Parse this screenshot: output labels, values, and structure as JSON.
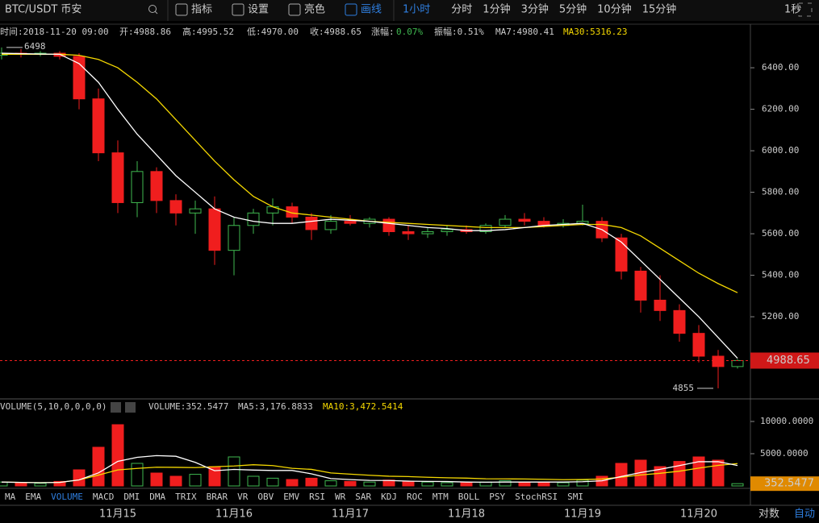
{
  "toolbar": {
    "pair": "BTC/USDT 币安",
    "items": [
      {
        "label": "指标"
      },
      {
        "label": "设置"
      },
      {
        "label": "亮色"
      },
      {
        "label": "画线",
        "active": true
      }
    ],
    "intervals": [
      {
        "label": "1小时",
        "active": true
      },
      {
        "label": "分时"
      },
      {
        "label": "1分钟"
      },
      {
        "label": "3分钟"
      },
      {
        "label": "5分钟"
      },
      {
        "label": "10分钟"
      },
      {
        "label": "15分钟"
      }
    ],
    "right": "1秒"
  },
  "info": {
    "time": "时间:2018-11-20 09:00",
    "open": "开:4988.86",
    "high": "高:4995.52",
    "low": "低:4970.00",
    "close": "收:4988.65",
    "change_label": "涨幅:",
    "change": "0.07%",
    "amplitude": "振幅:0.51%",
    "ma7": "MA7:4980.41",
    "ma30": "MA30:5316.23"
  },
  "volume_info": {
    "params": "VOLUME(5,10,0,0,0,0)",
    "volume": "VOLUME:352.5477",
    "ma5": "MA5:3,176.8833",
    "ma10": "MA10:3,472.5414"
  },
  "tabs": [
    {
      "label": "MA"
    },
    {
      "label": "EMA"
    },
    {
      "label": "VOLUME",
      "active": true
    },
    {
      "label": "MACD"
    },
    {
      "label": "DMI"
    },
    {
      "label": "DMA"
    },
    {
      "label": "TRIX"
    },
    {
      "label": "BRAR"
    },
    {
      "label": "VR"
    },
    {
      "label": "OBV"
    },
    {
      "label": "EMV"
    },
    {
      "label": "RSI"
    },
    {
      "label": "WR"
    },
    {
      "label": "SAR"
    },
    {
      "label": "KDJ"
    },
    {
      "label": "ROC"
    },
    {
      "label": "MTM"
    },
    {
      "label": "BOLL"
    },
    {
      "label": "PSY"
    },
    {
      "label": "StochRSI"
    },
    {
      "label": "SMI"
    }
  ],
  "footer": {
    "log": "对数",
    "auto": "自动"
  },
  "chart_data": [
    {
      "type": "candlestick",
      "up_color": "#3fb950",
      "down_color": "#f01e1e",
      "open": [
        6460,
        6470,
        6465,
        6470,
        6455,
        6250,
        5990,
        5750,
        5900,
        5760,
        5700,
        5720,
        5520,
        5640,
        5700,
        5730,
        5680,
        5620,
        5660,
        5650,
        5670,
        5610,
        5600,
        5610,
        5620,
        5610,
        5640,
        5670,
        5660,
        5640,
        5650,
        5660,
        5580,
        5420,
        5280,
        5230,
        5120,
        5010,
        4960
      ],
      "high": [
        6498,
        6490,
        6480,
        6480,
        6470,
        6300,
        6050,
        5950,
        5920,
        5790,
        5760,
        5780,
        5680,
        5720,
        5770,
        5750,
        5700,
        5690,
        5690,
        5680,
        5680,
        5640,
        5630,
        5640,
        5640,
        5650,
        5690,
        5700,
        5680,
        5670,
        5740,
        5680,
        5600,
        5440,
        5400,
        5260,
        5160,
        5040,
        4996
      ],
      "low": [
        6440,
        6450,
        6455,
        6440,
        6200,
        5950,
        5700,
        5680,
        5700,
        5640,
        5600,
        5450,
        5400,
        5600,
        5640,
        5650,
        5570,
        5600,
        5640,
        5630,
        5590,
        5570,
        5580,
        5590,
        5600,
        5600,
        5630,
        5640,
        5630,
        5630,
        5640,
        5560,
        5380,
        5220,
        5180,
        5080,
        4980,
        4855,
        4950
      ],
      "close": [
        6470,
        6465,
        6470,
        6455,
        6250,
        5990,
        5750,
        5900,
        5760,
        5700,
        5720,
        5520,
        5640,
        5700,
        5730,
        5680,
        5620,
        5660,
        5650,
        5670,
        5610,
        5600,
        5610,
        5620,
        5610,
        5640,
        5670,
        5660,
        5640,
        5650,
        5660,
        5580,
        5420,
        5280,
        5230,
        5120,
        5010,
        4960,
        4988.65
      ],
      "ma7": {
        "color": "#ffffff",
        "values": [
          6470,
          6468,
          6466,
          6465,
          6420,
          6330,
          6200,
          6080,
          5980,
          5880,
          5800,
          5720,
          5680,
          5660,
          5650,
          5650,
          5660,
          5670,
          5665,
          5660,
          5650,
          5640,
          5630,
          5625,
          5615,
          5615,
          5620,
          5630,
          5640,
          5645,
          5650,
          5620,
          5560,
          5470,
          5380,
          5290,
          5200,
          5100,
          5000
        ]
      },
      "ma30": {
        "color": "#f5d800",
        "values": [
          6465,
          6465,
          6465,
          6465,
          6460,
          6440,
          6400,
          6330,
          6250,
          6150,
          6050,
          5950,
          5860,
          5780,
          5730,
          5700,
          5690,
          5680,
          5670,
          5660,
          5655,
          5650,
          5645,
          5640,
          5635,
          5630,
          5630,
          5630,
          5635,
          5640,
          5645,
          5645,
          5630,
          5590,
          5530,
          5470,
          5410,
          5360,
          5316
        ]
      },
      "ylim": [
        4808,
        6610
      ],
      "yticks": [
        {
          "value": 5200,
          "label": "5200.00"
        },
        {
          "value": 5400,
          "label": "5400.00"
        },
        {
          "value": 5600,
          "label": "5600.00"
        },
        {
          "value": 5800,
          "label": "5800.00"
        },
        {
          "value": 6000,
          "label": "6000.00"
        },
        {
          "value": 6200,
          "label": "6200.00"
        },
        {
          "value": 6400,
          "label": "6400.00"
        }
      ],
      "high_marker": 6498,
      "low_marker": 4855,
      "last_price": 4988.65
    },
    {
      "type": "bar",
      "up_color": "#3fb950",
      "down_color": "#f01e1e",
      "categories": [
        null,
        null,
        null,
        null,
        null,
        null,
        "11月15",
        null,
        null,
        null,
        null,
        null,
        "11月16",
        null,
        null,
        null,
        null,
        null,
        "11月17",
        null,
        null,
        null,
        null,
        null,
        "11月18",
        null,
        null,
        null,
        null,
        null,
        "11月19",
        null,
        null,
        null,
        null,
        null,
        "11月20",
        null,
        null
      ],
      "values": [
        600,
        500,
        400,
        700,
        2500,
        6000,
        9500,
        3500,
        2000,
        1500,
        1800,
        3000,
        4500,
        1500,
        1200,
        1000,
        1200,
        800,
        700,
        600,
        900,
        700,
        600,
        500,
        500,
        600,
        800,
        600,
        500,
        500,
        900,
        1500,
        3500,
        4000,
        3000,
        3800,
        4500,
        4000,
        352.5477
      ],
      "ma5": {
        "color": "#ffffff",
        "values": [
          600,
          550,
          500,
          550,
          940,
          2020,
          3820,
          4440,
          4700,
          4600,
          3660,
          2360,
          2560,
          2460,
          2400,
          2400,
          1880,
          1140,
          980,
          860,
          840,
          740,
          700,
          680,
          600,
          580,
          600,
          600,
          600,
          600,
          660,
          800,
          1460,
          2080,
          2580,
          3160,
          3760,
          3760,
          3170
        ]
      },
      "ma10": {
        "color": "#f5d800",
        "values": [
          600,
          550,
          500,
          550,
          940,
          1680,
          2480,
          2720,
          2910,
          2880,
          2840,
          2980,
          3090,
          3290,
          3160,
          2730,
          2570,
          2020,
          1830,
          1660,
          1510,
          1450,
          1340,
          1270,
          1210,
          1110,
          1090,
          1080,
          1030,
          970,
          990,
          1070,
          1360,
          1700,
          1960,
          2290,
          2760,
          3190,
          3470
        ]
      },
      "ylim": [
        0,
        13250
      ],
      "yticks": [
        {
          "value": 5000,
          "label": "5000.0000"
        },
        {
          "value": 10000,
          "label": "10000.0000"
        }
      ],
      "last_value": 352.5477
    }
  ]
}
